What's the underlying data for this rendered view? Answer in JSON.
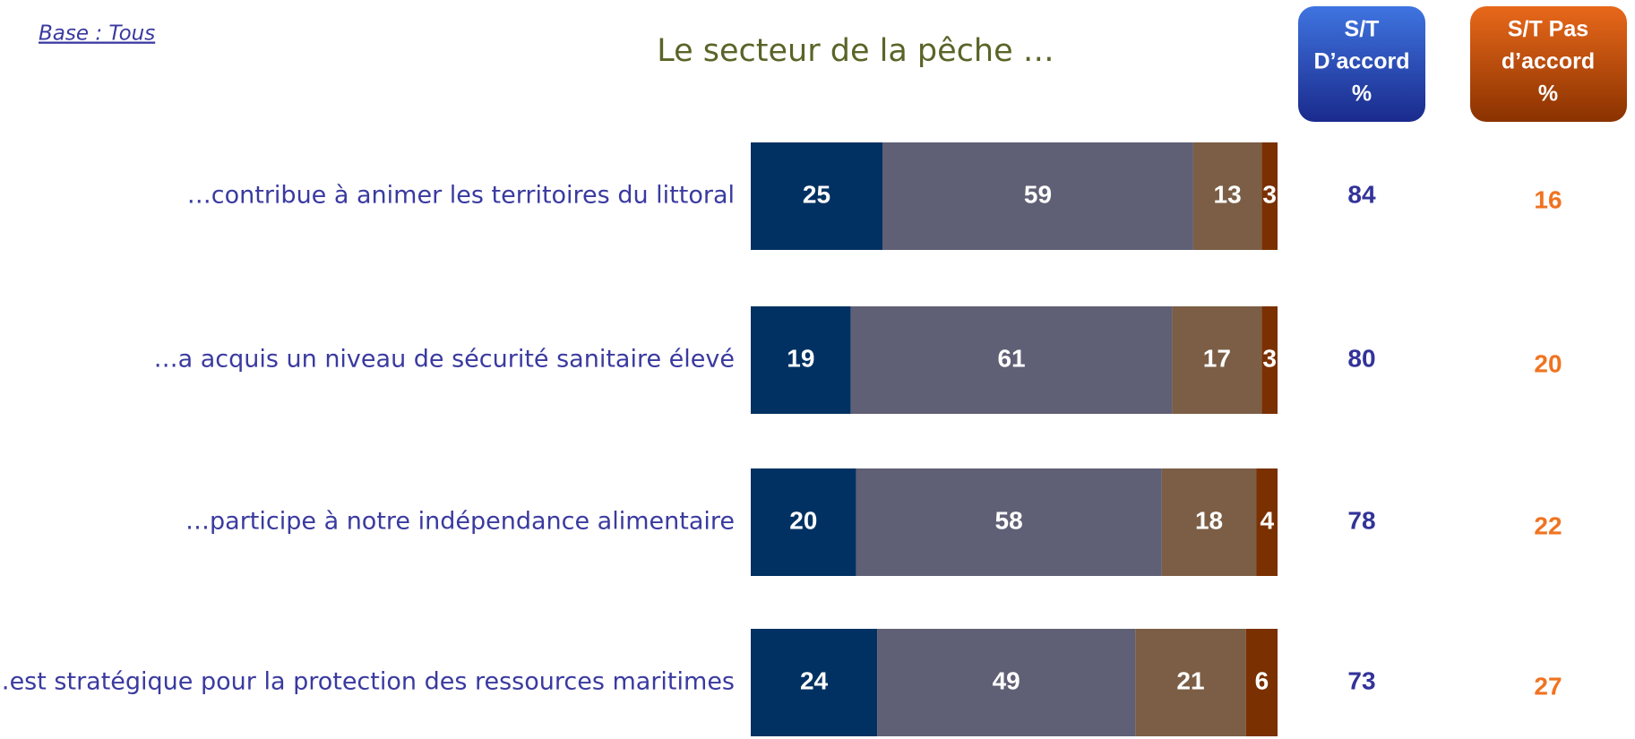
{
  "chart_data": {
    "type": "stacked-bar",
    "title": "Le secteur de la pêche …",
    "base_note": "Base : Tous",
    "categories": [
      "…contribue à animer les territoires du littoral",
      "…a acquis un niveau de sécurité sanitaire élevé",
      "…participe à notre indépendance alimentaire",
      "…est stratégique pour la protection des ressources maritimes"
    ],
    "xlim": [
      0,
      100
    ],
    "series": [
      {
        "color": "#013162",
        "values": [
          25,
          19,
          20,
          24
        ]
      },
      {
        "color": "#5f5f75",
        "values": [
          59,
          61,
          58,
          49
        ]
      },
      {
        "color": "#7b5e45",
        "values": [
          13,
          17,
          18,
          21
        ]
      },
      {
        "color": "#7a3000",
        "values": [
          3,
          3,
          4,
          6
        ]
      }
    ],
    "summary_columns": [
      {
        "header": [
          "S/T",
          "D’accord",
          "%"
        ],
        "color": "#333399",
        "values": [
          84,
          80,
          78,
          73
        ]
      },
      {
        "header": [
          "S/T Pas",
          "d’accord",
          "%"
        ],
        "color": "#f07320",
        "values": [
          16,
          20,
          22,
          27
        ]
      }
    ]
  }
}
